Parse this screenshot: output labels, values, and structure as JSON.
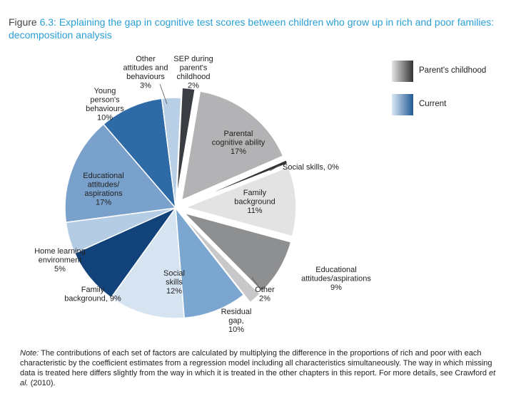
{
  "title": {
    "prefix": "Figure",
    "number": "6.3:",
    "text": "Explaining the gap in cognitive test scores between children who grow up in rich and poor families: decomposition analysis"
  },
  "legend": [
    {
      "label": "Parent's childhood",
      "gradient": [
        "#e6e6e6",
        "#333333"
      ]
    },
    {
      "label": "Current",
      "gradient": [
        "#dce8f5",
        "#1f5a94"
      ]
    }
  ],
  "note": {
    "lead": "Note:",
    "text": "The contributions of each set of factors are calculated by multiplying the difference in the proportions of rich and poor with each characteristic by the coefficient estimates from a regression model including all characteristics simultaneously. The way in which missing data is treated here differs slightly from the way in which it is treated in the other chapters in this report. For more details, see Crawford",
    "etal": "et al.",
    "tail": "(2010)."
  },
  "chart_data": {
    "type": "pie",
    "title": "Explaining the gap in cognitive test scores between children who grow up in rich and poor families: decomposition analysis",
    "unit": "%",
    "slices": [
      {
        "name": "SEP during parent's childhood",
        "value": 2,
        "group": "Parent's childhood",
        "color": "#3a3d42",
        "exploded": true,
        "label_lines": [
          "SEP during",
          "parent's",
          "childhood",
          "2%"
        ]
      },
      {
        "name": "Parental cognitive ability",
        "value": 17,
        "group": "Parent's childhood",
        "color": "#b3b3b5",
        "exploded": true,
        "label_lines": [
          "Parental",
          "cognitive ability",
          "17%"
        ]
      },
      {
        "name": "Social skills",
        "value": 0,
        "group": "Parent's childhood",
        "color": "#333333",
        "exploded": true,
        "label_lines": [
          "Social skills, 0%"
        ]
      },
      {
        "name": "Family background",
        "value": 11,
        "group": "Parent's childhood",
        "color": "#e3e3e3",
        "exploded": true,
        "label_lines": [
          "Family",
          "background",
          "11%"
        ]
      },
      {
        "name": "Educational attitudes/aspirations",
        "value": 9,
        "group": "Parent's childhood",
        "color": "#8e8f91",
        "exploded": true,
        "label_lines": [
          "Educational",
          "attitudes/aspirations",
          "9%"
        ]
      },
      {
        "name": "Other",
        "value": 2,
        "group": "Parent's childhood",
        "color": "#c8c8ca",
        "exploded": true,
        "label_lines": [
          "Other",
          "2%"
        ]
      },
      {
        "name": "Residual gap",
        "value": 10,
        "group": "Current",
        "color": "#7aa6d0",
        "exploded": false,
        "label_lines": [
          "Residual",
          "gap,",
          "10%"
        ]
      },
      {
        "name": "Social skills",
        "value": 12,
        "group": "Current",
        "color": "#d6e3f1",
        "exploded": false,
        "label_lines": [
          "Social",
          "skills",
          "12%"
        ]
      },
      {
        "name": "Family background",
        "value": 9,
        "group": "Current",
        "color": "#12427a",
        "exploded": false,
        "label_lines": [
          "Family",
          "background, 9%"
        ]
      },
      {
        "name": "Home learning environment",
        "value": 5,
        "group": "Current",
        "color": "#b4cce4",
        "exploded": false,
        "label_lines": [
          "Home learning",
          "environment",
          "5%"
        ]
      },
      {
        "name": "Educational attitudes/aspirations",
        "value": 17,
        "group": "Current",
        "color": "#79a1cb",
        "exploded": false,
        "label_lines": [
          "Educational",
          "attitudes/",
          "aspirations",
          "17%"
        ]
      },
      {
        "name": "Young person's behaviours",
        "value": 10,
        "group": "Current",
        "color": "#2d6aa6",
        "exploded": false,
        "label_lines": [
          "Young",
          "person's",
          "behaviours",
          "10%"
        ]
      },
      {
        "name": "Other attitudes and behaviours",
        "value": 3,
        "group": "Current",
        "color": "#b9cfe6",
        "exploded": false,
        "label_lines": [
          "Other",
          "attitudes and",
          "behaviours",
          "3%"
        ]
      }
    ]
  }
}
